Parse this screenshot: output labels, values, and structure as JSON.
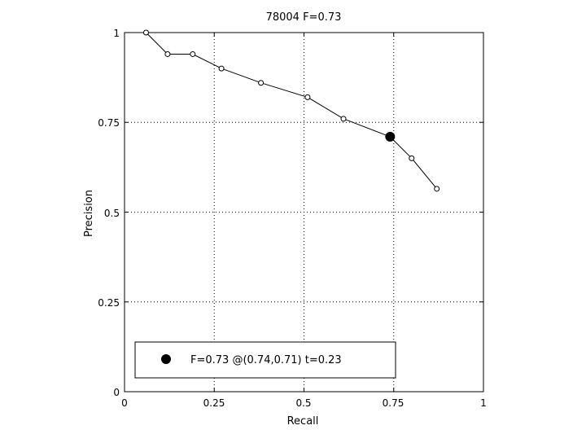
{
  "chart_data": {
    "type": "line",
    "title": "78004 F=0.73",
    "xlabel": "Recall",
    "ylabel": "Precision",
    "xlim": [
      0,
      1
    ],
    "ylim": [
      0,
      1
    ],
    "grid": true,
    "legend_position": "bottom",
    "x_ticks": [
      "0",
      "0.25",
      "0.5",
      "0.75",
      "1"
    ],
    "y_ticks": [
      "0",
      "0.25",
      "0.5",
      "0.75",
      "1"
    ],
    "series": [
      {
        "x": [
          0.06,
          0.12,
          0.19,
          0.27,
          0.38,
          0.51,
          0.61,
          0.74,
          0.8,
          0.87
        ],
        "y": [
          1.0,
          0.94,
          0.94,
          0.9,
          0.86,
          0.82,
          0.76,
          0.71,
          0.65,
          0.565
        ],
        "color": "#000000",
        "marker": "open-circle"
      }
    ],
    "highlight": {
      "x": 0.74,
      "y": 0.71,
      "color": "#000000",
      "marker": "filled-circle"
    },
    "legend": {
      "label": "F=0.73 @(0.74,0.71) t=0.23"
    }
  }
}
